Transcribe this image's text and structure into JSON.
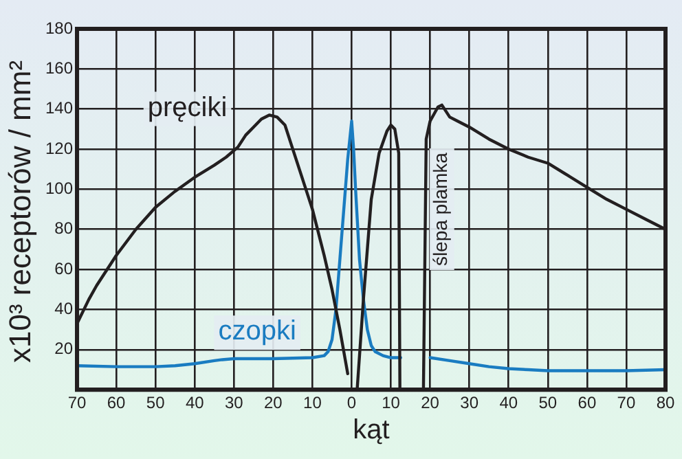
{
  "chart_data": {
    "type": "line",
    "xlabel": "kąt",
    "ylabel": "x10³ receptorów / mm²",
    "xlim": [
      -70,
      80
    ],
    "xticks": [
      {
        "value": -70,
        "label": "70"
      },
      {
        "value": -60,
        "label": "60"
      },
      {
        "value": -50,
        "label": "50"
      },
      {
        "value": -40,
        "label": "40"
      },
      {
        "value": -30,
        "label": "30"
      },
      {
        "value": -20,
        "label": "20"
      },
      {
        "value": -10,
        "label": "10"
      },
      0,
      10,
      20,
      30,
      40,
      50,
      60,
      70,
      80
    ],
    "ylim": [
      0,
      180
    ],
    "yticks": [
      20,
      40,
      60,
      80,
      100,
      120,
      140,
      160,
      180
    ],
    "grid": true,
    "legend": false,
    "marker": "none",
    "line_style": "solid",
    "series": [
      {
        "name": "pręciki",
        "color": "#231f20",
        "x": [
          -70,
          -67,
          -65,
          -60,
          -55,
          -50,
          -45,
          -40,
          -35,
          -32,
          -29,
          -27,
          -25,
          -23,
          -21,
          -19,
          -17,
          -15,
          -12,
          -10,
          -7,
          -5,
          -3,
          -1,
          0,
          1.4,
          3,
          5,
          7,
          9,
          10,
          11,
          12,
          12.3,
          13,
          18,
          18.3,
          19,
          20,
          22,
          23,
          25,
          27,
          30,
          35,
          40,
          45,
          50,
          55,
          60,
          65,
          70,
          75,
          80
        ],
        "values": [
          33,
          45,
          52,
          67,
          80,
          91,
          99,
          106,
          112,
          116,
          121,
          127,
          131,
          135,
          137,
          136,
          132,
          120,
          102,
          90,
          67,
          50,
          30,
          8,
          null,
          0,
          45,
          95,
          118,
          129,
          132,
          130,
          118,
          0,
          null,
          null,
          0,
          125,
          134,
          141,
          142,
          136,
          134,
          131,
          125,
          120,
          116,
          113,
          107,
          101,
          95,
          90,
          85,
          80
        ]
      },
      {
        "name": "czopki",
        "color": "#1a7cc1",
        "x": [
          -70,
          -60,
          -50,
          -45,
          -40,
          -35,
          -33,
          -30,
          -20,
          -10,
          -7,
          -6,
          -5,
          -4,
          -3,
          -2,
          -1,
          0,
          0.5,
          1,
          2,
          3,
          4,
          5,
          6,
          8,
          10,
          12,
          12.5,
          13,
          18,
          20,
          25,
          30,
          35,
          40,
          45,
          50,
          60,
          70,
          80
        ],
        "values": [
          12,
          11.5,
          11.5,
          12,
          13,
          14.5,
          15,
          15.5,
          15.5,
          16,
          17,
          19,
          25,
          40,
          65,
          90,
          115,
          134,
          120,
          100,
          65,
          45,
          30,
          22,
          19,
          17,
          16,
          16,
          16,
          null,
          null,
          16,
          14.5,
          13,
          11.5,
          10.5,
          10,
          9.5,
          9.5,
          9.5,
          10
        ]
      }
    ],
    "annotations": [
      "ślepa plamka"
    ]
  }
}
